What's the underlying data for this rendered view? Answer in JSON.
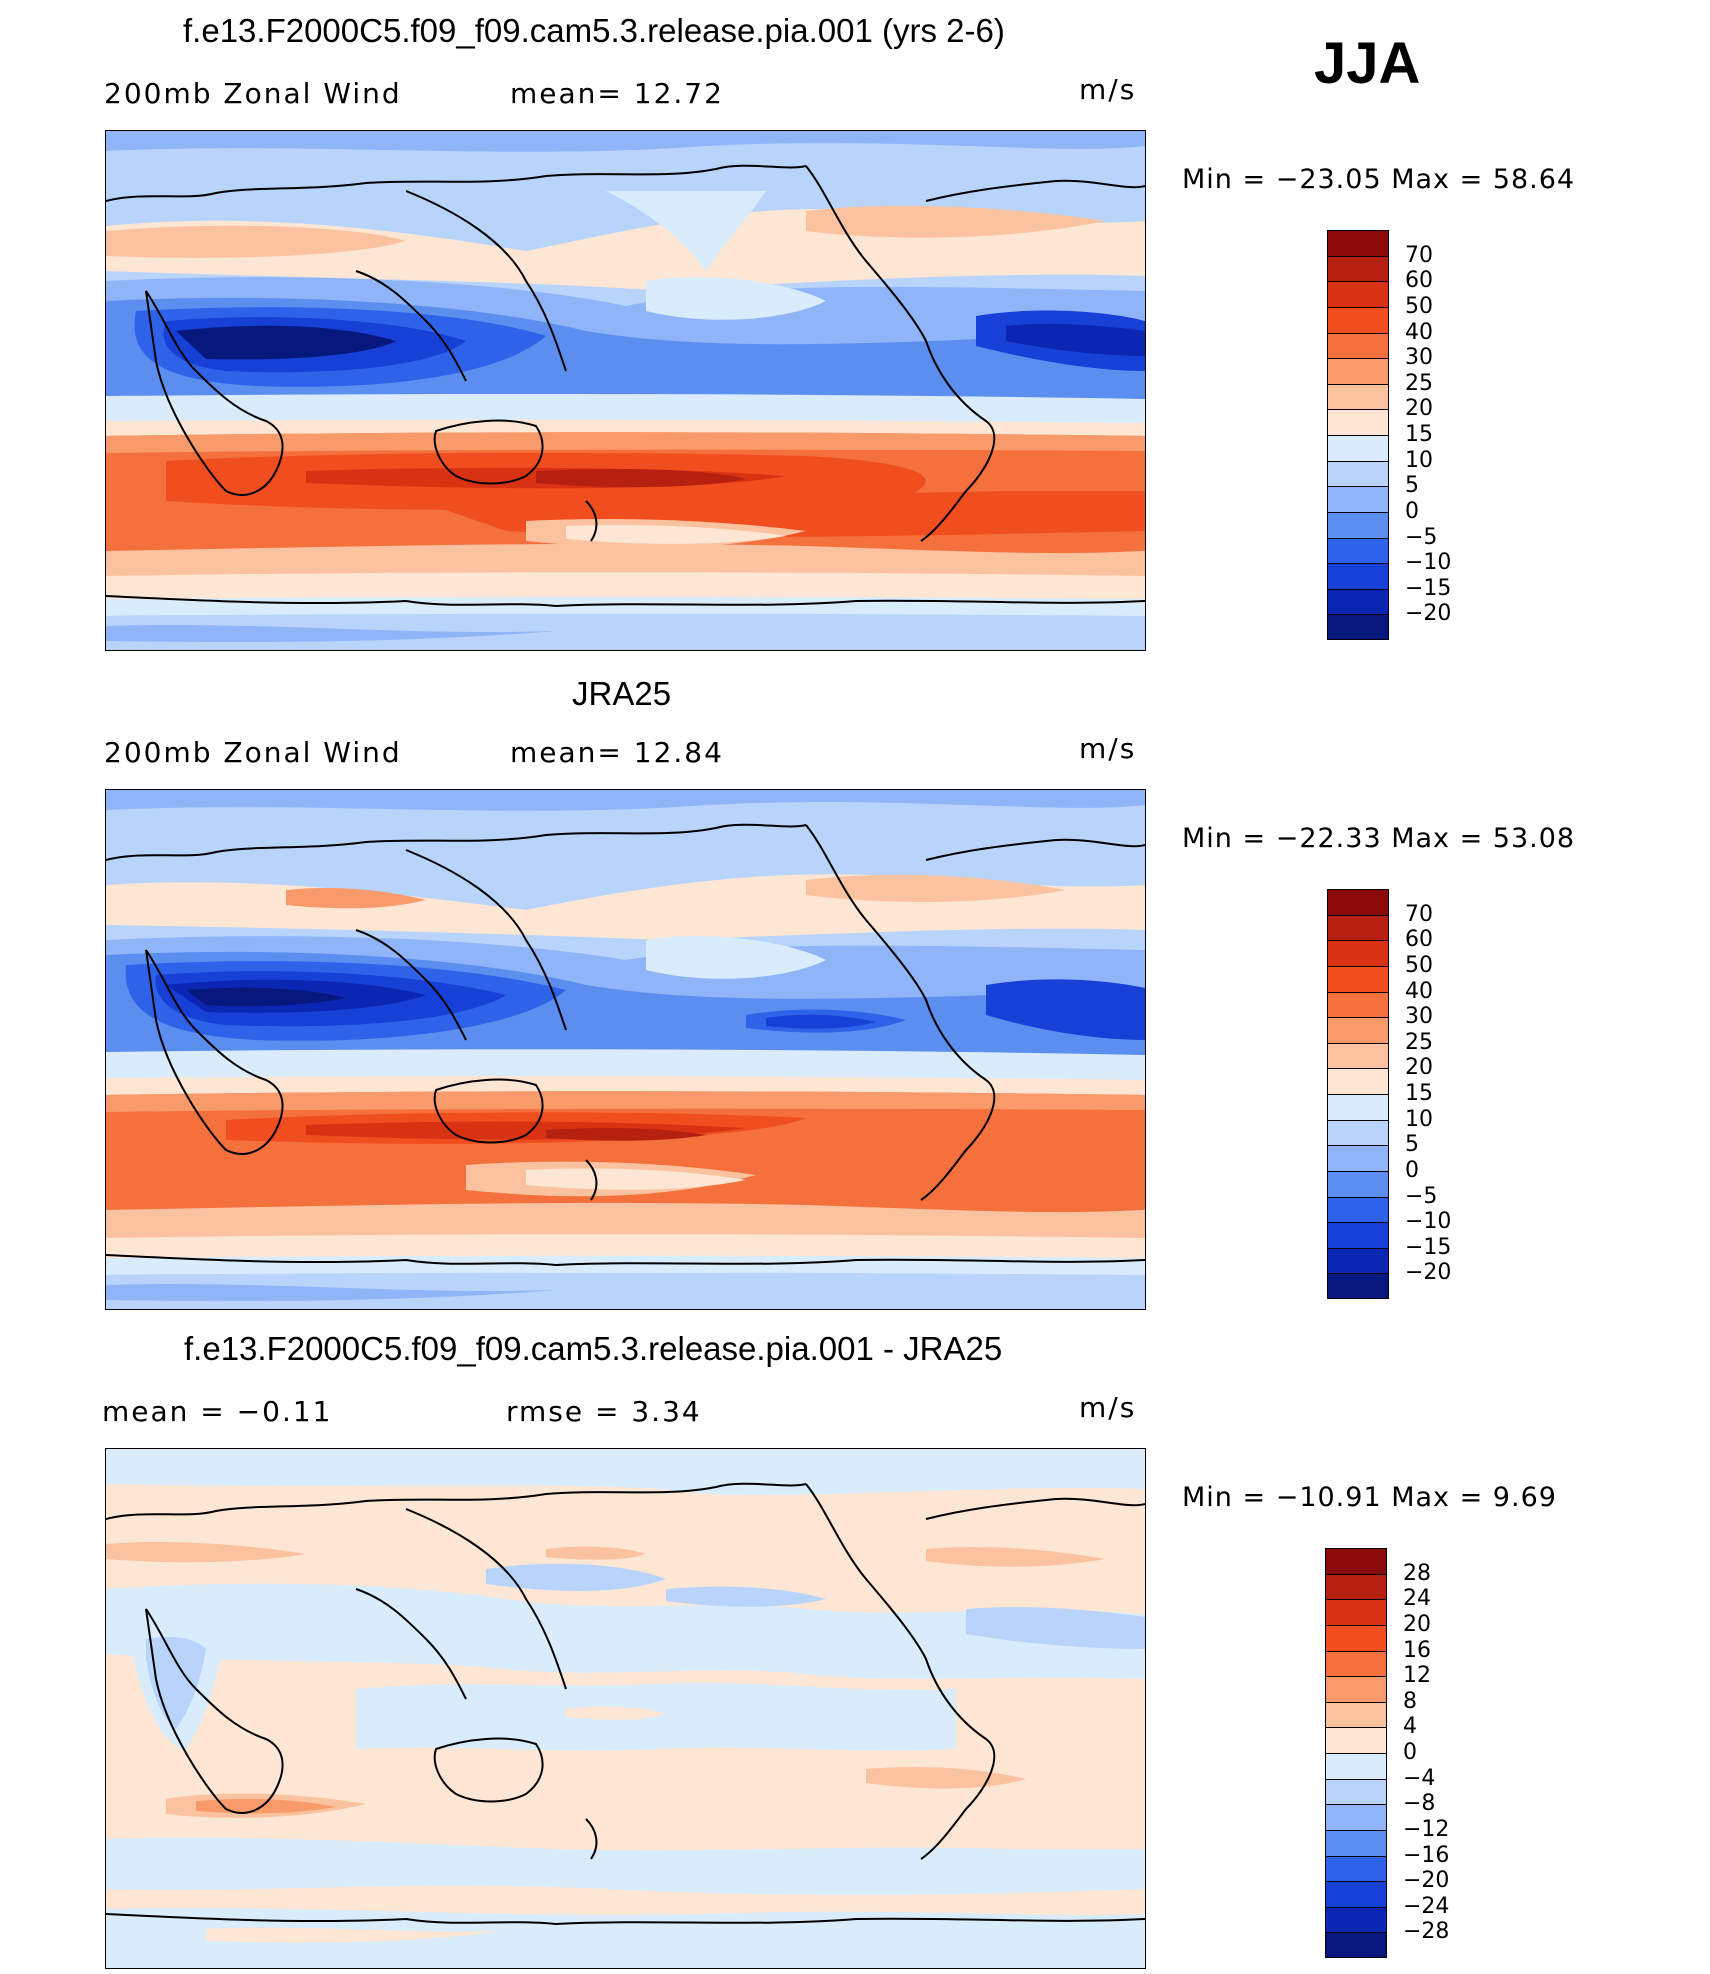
{
  "season": "JJA",
  "panels": [
    {
      "id": "model",
      "title": "f.e13.F2000C5.f09_f09.cam5.3.release.pia.001 (yrs 2-6)",
      "left_label": "200mb  Zonal  Wind",
      "stat_label": "mean=   12.72",
      "units": "m/s",
      "minmax": "Min  =  −23.05  Max  =    58.64",
      "colorbar_labels": [
        "70",
        "60",
        "50",
        "40",
        "30",
        "25",
        "20",
        "15",
        "10",
        "5",
        "0",
        "−5",
        "−10",
        "−15",
        "−20"
      ]
    },
    {
      "id": "obs",
      "title": "JRA25",
      "left_label": "200mb  Zonal  Wind",
      "stat_label": "mean=   12.84",
      "units": "m/s",
      "minmax": "Min  =  −22.33  Max  =    53.08",
      "colorbar_labels": [
        "70",
        "60",
        "50",
        "40",
        "30",
        "25",
        "20",
        "15",
        "10",
        "5",
        "0",
        "−5",
        "−10",
        "−15",
        "−20"
      ]
    },
    {
      "id": "diff",
      "title": "f.e13.F2000C5.f09_f09.cam5.3.release.pia.001 - JRA25",
      "left_label": "mean  =    −0.11",
      "stat_label": "rmse  =     3.34",
      "units": "m/s",
      "minmax": "Min  =  −10.91  Max  =     9.69",
      "colorbar_labels": [
        "28",
        "24",
        "20",
        "16",
        "12",
        "8",
        "4",
        "0",
        "−4",
        "−8",
        "−12",
        "−16",
        "−20",
        "−24",
        "−28"
      ]
    }
  ],
  "colors": {
    "wind_scale": [
      "#8b0a0a",
      "#b52010",
      "#d83212",
      "#f14e1f",
      "#f4703c",
      "#f99a6a",
      "#fbc2a0",
      "#fde6d4",
      "#d9ecfb",
      "#b8d4fb",
      "#8fb4f7",
      "#5c8ef0",
      "#2e63e9",
      "#1640d6",
      "#0a26b3",
      "#06177e"
    ],
    "diff_scale": [
      "#8b0a0a",
      "#b52010",
      "#d83212",
      "#f14e1f",
      "#f4703c",
      "#f99a6a",
      "#fbc2a0",
      "#fde6d4",
      "#d9ecfb",
      "#b8d4fb",
      "#8fb4f7",
      "#5c8ef0",
      "#2e63e9",
      "#1640d6",
      "#0a26b3",
      "#06177e"
    ]
  }
}
